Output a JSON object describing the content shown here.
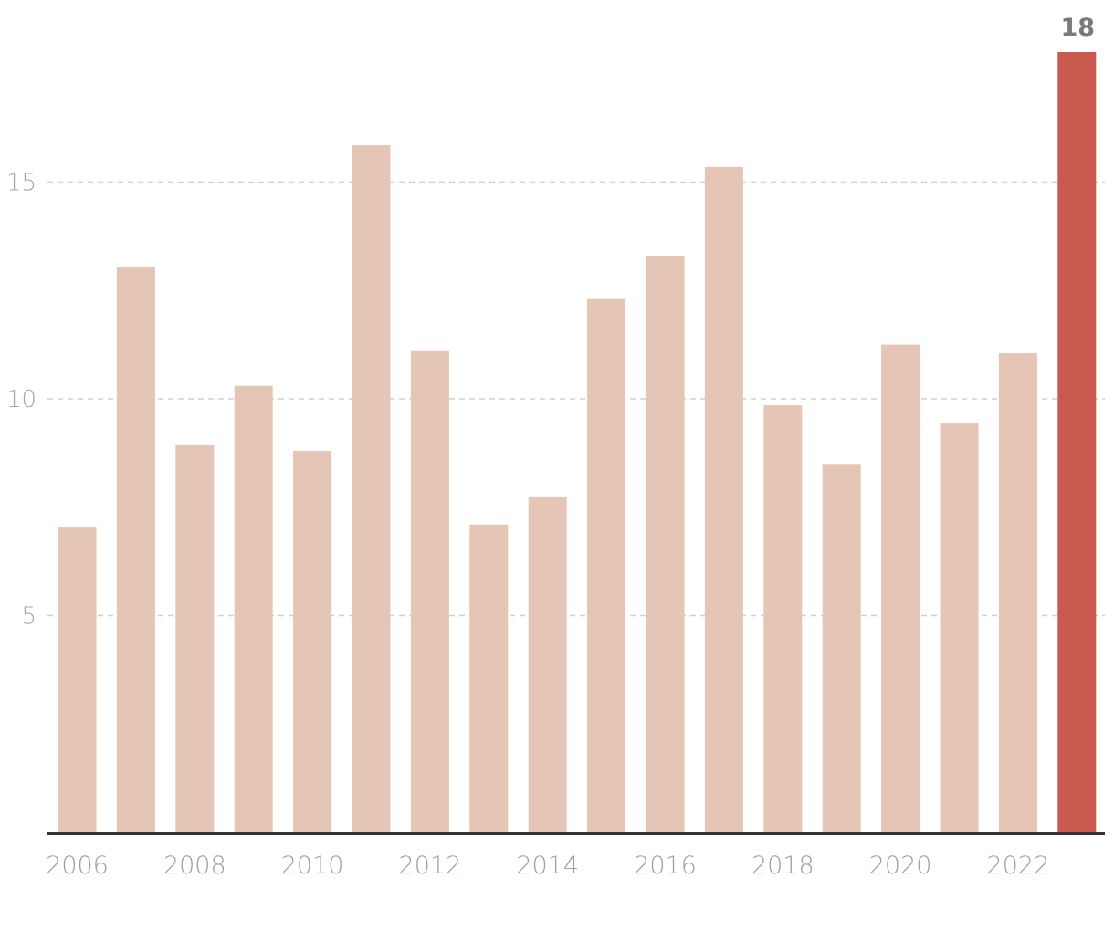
{
  "chart_data": {
    "type": "bar",
    "title": "",
    "xlabel": "",
    "ylabel": "",
    "categories": [
      "2006",
      "2007",
      "2008",
      "2009",
      "2010",
      "2011",
      "2012",
      "2013",
      "2014",
      "2015",
      "2016",
      "2017",
      "2018",
      "2019",
      "2020",
      "2021",
      "2022",
      "2023"
    ],
    "values": [
      7.05,
      13.05,
      8.95,
      10.3,
      8.8,
      15.85,
      11.1,
      7.1,
      7.75,
      12.3,
      13.3,
      15.35,
      9.85,
      8.5,
      11.25,
      9.45,
      11.05,
      18
    ],
    "x_tick_labels": [
      "2006",
      "2008",
      "2010",
      "2012",
      "2014",
      "2016",
      "2018",
      "2020",
      "2022"
    ],
    "y_ticks": [
      5,
      10,
      15
    ],
    "ylim": [
      0,
      18.9
    ],
    "grid": "horizontal dashed",
    "legend": "none",
    "highlight": {
      "index": 17,
      "label": "18"
    },
    "colors": {
      "bar": "#e5c5b5",
      "highlight": "#c8594c",
      "baseline": "#333333",
      "grid": "#cfcfcf"
    }
  }
}
